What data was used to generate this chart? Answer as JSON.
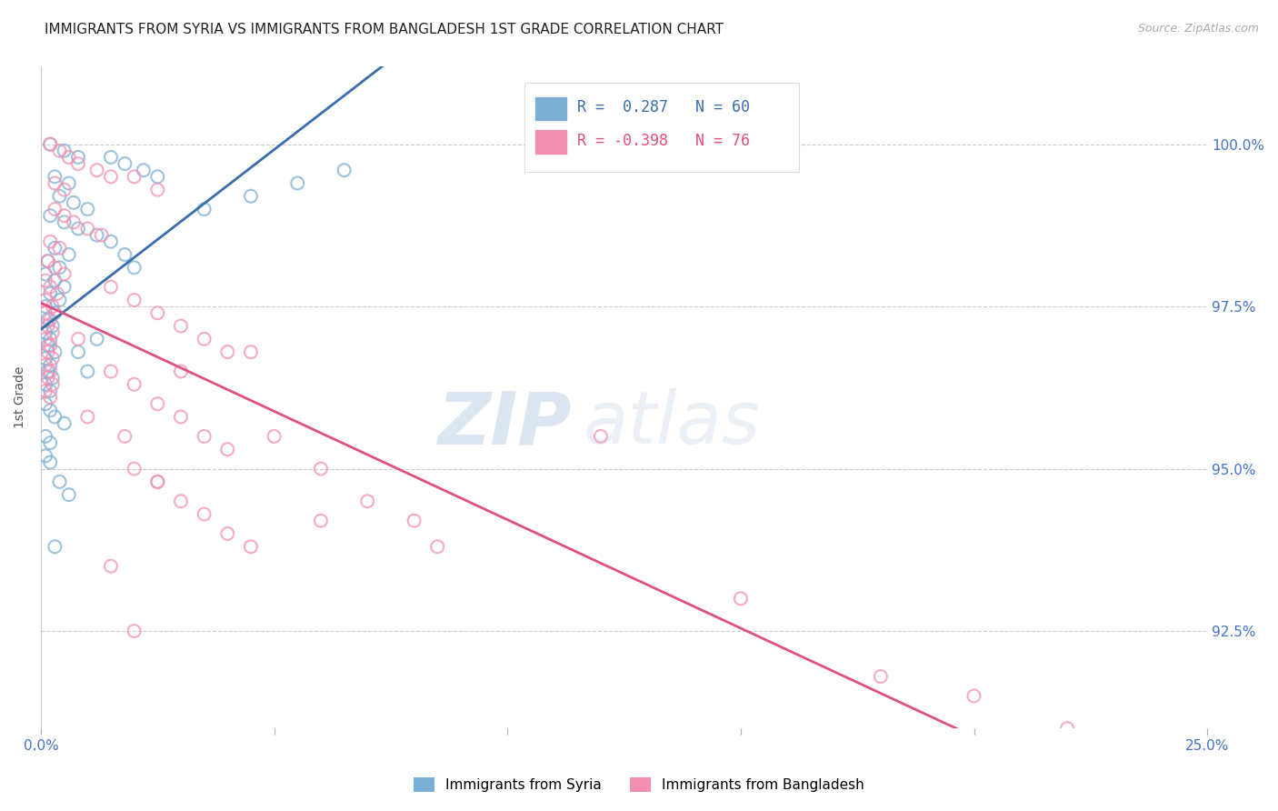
{
  "title": "IMMIGRANTS FROM SYRIA VS IMMIGRANTS FROM BANGLADESH 1ST GRADE CORRELATION CHART",
  "source_text": "Source: ZipAtlas.com",
  "ylabel": "1st Grade",
  "y_ticks": [
    92.5,
    95.0,
    97.5,
    100.0
  ],
  "y_tick_labels": [
    "92.5%",
    "95.0%",
    "97.5%",
    "100.0%"
  ],
  "xlim": [
    0.0,
    25.0
  ],
  "ylim": [
    91.0,
    101.2
  ],
  "r_syria": 0.287,
  "n_syria": 60,
  "r_bangladesh": -0.398,
  "n_bangladesh": 76,
  "syria_color": "#7bafd4",
  "syria_line_color": "#3a6eaa",
  "bangladesh_color": "#f48fb1",
  "bangladesh_line_color": "#e05080",
  "watermark_zip": "ZIP",
  "watermark_atlas": "atlas",
  "legend_entries": [
    {
      "label": "Immigrants from Syria",
      "color": "#a8c4e0"
    },
    {
      "label": "Immigrants from Bangladesh",
      "color": "#f4a0b0"
    }
  ],
  "syria_points": [
    [
      0.2,
      100.0
    ],
    [
      0.5,
      99.9
    ],
    [
      0.8,
      99.8
    ],
    [
      1.5,
      99.8
    ],
    [
      1.8,
      99.7
    ],
    [
      0.3,
      99.5
    ],
    [
      0.6,
      99.4
    ],
    [
      2.2,
      99.6
    ],
    [
      2.5,
      99.5
    ],
    [
      0.4,
      99.2
    ],
    [
      0.7,
      99.1
    ],
    [
      1.0,
      99.0
    ],
    [
      0.2,
      98.9
    ],
    [
      0.5,
      98.8
    ],
    [
      0.8,
      98.7
    ],
    [
      1.2,
      98.6
    ],
    [
      1.5,
      98.5
    ],
    [
      0.3,
      98.4
    ],
    [
      0.6,
      98.3
    ],
    [
      0.15,
      98.2
    ],
    [
      0.4,
      98.1
    ],
    [
      0.1,
      98.0
    ],
    [
      0.3,
      97.9
    ],
    [
      0.5,
      97.8
    ],
    [
      0.2,
      97.7
    ],
    [
      0.4,
      97.6
    ],
    [
      0.1,
      97.5
    ],
    [
      0.3,
      97.4
    ],
    [
      0.15,
      97.3
    ],
    [
      0.25,
      97.2
    ],
    [
      0.1,
      97.1
    ],
    [
      0.2,
      97.0
    ],
    [
      0.15,
      96.9
    ],
    [
      0.3,
      96.8
    ],
    [
      0.1,
      96.7
    ],
    [
      0.2,
      96.6
    ],
    [
      0.15,
      96.5
    ],
    [
      0.25,
      96.4
    ],
    [
      0.1,
      96.3
    ],
    [
      0.2,
      96.2
    ],
    [
      0.1,
      96.0
    ],
    [
      0.2,
      95.9
    ],
    [
      0.3,
      95.8
    ],
    [
      0.5,
      95.7
    ],
    [
      0.1,
      95.5
    ],
    [
      0.2,
      95.4
    ],
    [
      0.1,
      95.2
    ],
    [
      0.2,
      95.1
    ],
    [
      1.8,
      98.3
    ],
    [
      2.0,
      98.1
    ],
    [
      3.5,
      99.0
    ],
    [
      4.5,
      99.2
    ],
    [
      5.5,
      99.4
    ],
    [
      6.5,
      99.6
    ],
    [
      0.8,
      96.8
    ],
    [
      1.2,
      97.0
    ],
    [
      0.4,
      94.8
    ],
    [
      0.6,
      94.6
    ],
    [
      0.3,
      93.8
    ],
    [
      1.0,
      96.5
    ]
  ],
  "bangladesh_points": [
    [
      0.2,
      100.0
    ],
    [
      0.4,
      99.9
    ],
    [
      0.6,
      99.8
    ],
    [
      0.8,
      99.7
    ],
    [
      1.2,
      99.6
    ],
    [
      1.5,
      99.5
    ],
    [
      0.3,
      99.4
    ],
    [
      0.5,
      99.3
    ],
    [
      2.0,
      99.5
    ],
    [
      2.5,
      99.3
    ],
    [
      0.3,
      99.0
    ],
    [
      0.5,
      98.9
    ],
    [
      0.7,
      98.8
    ],
    [
      1.0,
      98.7
    ],
    [
      1.3,
      98.6
    ],
    [
      0.2,
      98.5
    ],
    [
      0.4,
      98.4
    ],
    [
      0.15,
      98.2
    ],
    [
      0.3,
      98.1
    ],
    [
      0.1,
      97.9
    ],
    [
      0.2,
      97.8
    ],
    [
      0.35,
      97.7
    ],
    [
      0.1,
      97.6
    ],
    [
      0.25,
      97.5
    ],
    [
      0.1,
      97.4
    ],
    [
      0.2,
      97.3
    ],
    [
      0.15,
      97.2
    ],
    [
      0.25,
      97.1
    ],
    [
      0.1,
      97.0
    ],
    [
      0.2,
      96.9
    ],
    [
      0.15,
      96.8
    ],
    [
      0.25,
      96.7
    ],
    [
      0.1,
      96.6
    ],
    [
      0.2,
      96.5
    ],
    [
      0.15,
      96.4
    ],
    [
      0.25,
      96.3
    ],
    [
      0.1,
      96.2
    ],
    [
      0.2,
      96.1
    ],
    [
      1.5,
      97.8
    ],
    [
      2.0,
      97.6
    ],
    [
      2.5,
      97.4
    ],
    [
      3.0,
      97.2
    ],
    [
      3.5,
      97.0
    ],
    [
      4.0,
      96.8
    ],
    [
      1.5,
      96.5
    ],
    [
      2.0,
      96.3
    ],
    [
      2.5,
      96.0
    ],
    [
      3.0,
      95.8
    ],
    [
      3.5,
      95.5
    ],
    [
      4.0,
      95.3
    ],
    [
      2.0,
      95.0
    ],
    [
      2.5,
      94.8
    ],
    [
      3.0,
      94.5
    ],
    [
      3.5,
      94.3
    ],
    [
      4.0,
      94.0
    ],
    [
      4.5,
      93.8
    ],
    [
      5.0,
      95.5
    ],
    [
      6.0,
      95.0
    ],
    [
      7.0,
      94.5
    ],
    [
      8.0,
      94.2
    ],
    [
      1.5,
      93.5
    ],
    [
      2.0,
      92.5
    ],
    [
      2.5,
      94.8
    ],
    [
      3.0,
      96.5
    ],
    [
      12.0,
      95.5
    ],
    [
      4.5,
      96.8
    ],
    [
      6.0,
      94.2
    ],
    [
      8.5,
      93.8
    ],
    [
      15.0,
      93.0
    ],
    [
      18.0,
      91.8
    ],
    [
      20.0,
      91.5
    ],
    [
      22.0,
      91.0
    ],
    [
      0.5,
      98.0
    ],
    [
      0.8,
      97.0
    ],
    [
      1.0,
      95.8
    ],
    [
      1.8,
      95.5
    ]
  ]
}
